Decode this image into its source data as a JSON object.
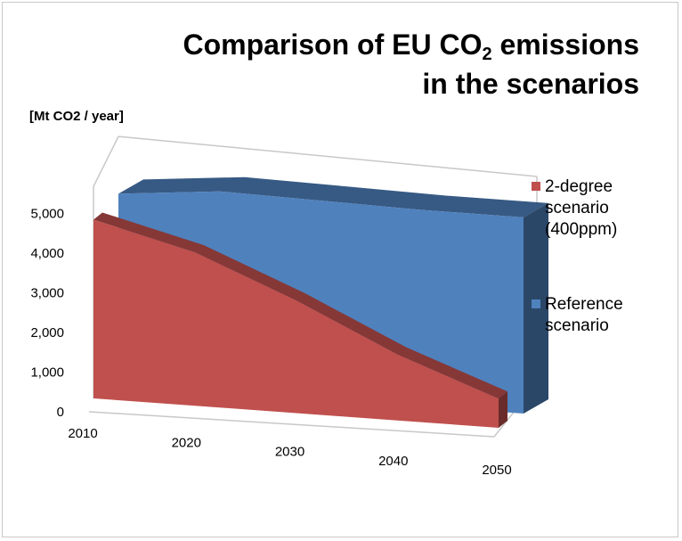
{
  "chart_data": {
    "type": "area",
    "title_main": "Comparison of EU CO",
    "title_sub": "2",
    "title_tail": " emissions",
    "title_line2": "in the scenarios",
    "ylabel": "[Mt CO2 / year]",
    "x": [
      "2010",
      "2020",
      "2030",
      "2040",
      "2050"
    ],
    "y_ticks": [
      "0",
      "1,000",
      "2,000",
      "3,000",
      "4,000",
      "5,000"
    ],
    "ylim": [
      0,
      5000
    ],
    "series": [
      {
        "name": "2-degree scenario (400ppm)",
        "color": "#c0504d",
        "values": [
          4600,
          3950,
          2900,
          1700,
          750
        ]
      },
      {
        "name": "Reference scenario",
        "color": "#4f81bd",
        "values": [
          4900,
          5150,
          5100,
          5050,
          5050
        ]
      }
    ],
    "legend": {
      "position": "right",
      "items": [
        {
          "lines": [
            "2-degree",
            "scenario",
            "(400ppm)"
          ],
          "color": "#c0504d"
        },
        {
          "lines": [
            "Reference",
            "scenario"
          ],
          "color": "#4f81bd"
        }
      ]
    },
    "grid": false
  }
}
